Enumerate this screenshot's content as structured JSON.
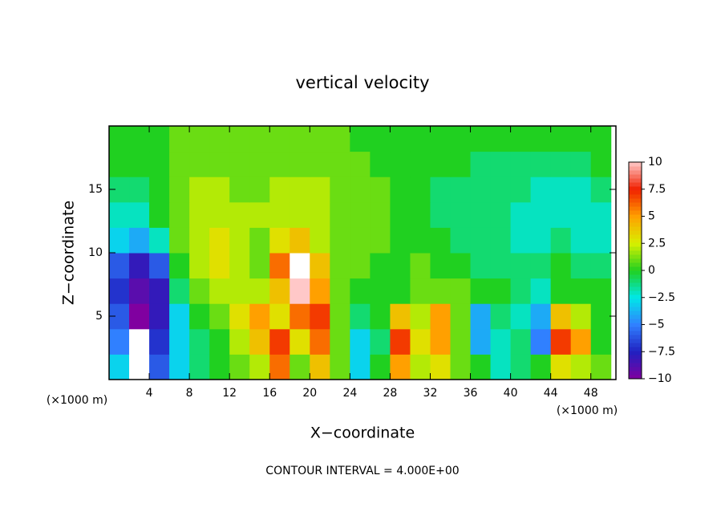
{
  "chart_data": {
    "type": "heatmap",
    "title": "vertical velocity",
    "x_label": "X−coordinate",
    "y_label": "Z−coordinate",
    "x_unit": "(×1000 m)",
    "footer": "CONTOUR INTERVAL = 4.000E+00",
    "x": [
      1,
      3,
      5,
      7,
      9,
      11,
      13,
      15,
      17,
      19,
      21,
      23,
      25,
      27,
      29,
      31,
      33,
      35,
      37,
      39,
      41,
      43,
      45,
      47,
      49
    ],
    "y": [
      1,
      3,
      5,
      7,
      9,
      11,
      13,
      15,
      17,
      19
    ],
    "z": [
      [
        -3,
        -12,
        -6,
        -3,
        -1,
        0,
        1,
        2,
        6,
        1,
        4,
        1,
        -3,
        0,
        5,
        2,
        3,
        1,
        0,
        -2,
        -1,
        0,
        3,
        2,
        1
      ],
      [
        -5,
        -12,
        -7,
        -3,
        -1,
        0,
        2,
        4,
        7,
        3,
        6,
        1,
        -3,
        -1,
        7,
        3,
        5,
        1,
        -4,
        -2,
        -1,
        -5,
        7,
        5,
        0
      ],
      [
        -6,
        -10,
        -8,
        -3,
        0,
        1,
        3,
        5,
        3,
        6,
        7,
        1,
        -1,
        0,
        4,
        2,
        5,
        1,
        -4,
        -1,
        -2,
        -4,
        4,
        2,
        0
      ],
      [
        -7,
        -9,
        -8,
        -1,
        1,
        2,
        2,
        2,
        4,
        10,
        5,
        1,
        0,
        0,
        0,
        1,
        1,
        1,
        0,
        0,
        -1,
        -2,
        0,
        0,
        0
      ],
      [
        -6,
        -8,
        -6,
        0,
        2,
        3,
        2,
        1,
        6,
        11,
        4,
        1,
        1,
        0,
        0,
        1,
        0,
        0,
        -1,
        -1,
        -1,
        -1,
        0,
        -1,
        -1
      ],
      [
        -3,
        -4,
        -2,
        1,
        2,
        3,
        2,
        1,
        3,
        4,
        2,
        1,
        1,
        1,
        0,
        0,
        0,
        -1,
        -1,
        -1,
        -2,
        -2,
        -1,
        -2,
        -2
      ],
      [
        -2,
        -2,
        0,
        1,
        2,
        2,
        2,
        2,
        2,
        2,
        2,
        1,
        1,
        1,
        0,
        0,
        -1,
        -1,
        -1,
        -1,
        -2,
        -2,
        -2,
        -2,
        -2
      ],
      [
        -1,
        -1,
        0,
        1,
        2,
        2,
        1,
        1,
        2,
        2,
        2,
        1,
        1,
        1,
        0,
        0,
        -1,
        -1,
        -1,
        -1,
        -1,
        -2,
        -2,
        -2,
        -1
      ],
      [
        0,
        0,
        0,
        1,
        1,
        1,
        1,
        1,
        1,
        1,
        1,
        1,
        1,
        0,
        0,
        0,
        0,
        0,
        -1,
        -1,
        -1,
        -1,
        -1,
        -1,
        0
      ],
      [
        0,
        0,
        0,
        1,
        1,
        1,
        1,
        1,
        1,
        1,
        1,
        1,
        0,
        0,
        0,
        0,
        0,
        0,
        0,
        0,
        0,
        0,
        0,
        0,
        0
      ]
    ],
    "xlim": [
      0,
      50.5
    ],
    "ylim": [
      0,
      20
    ],
    "xticks": [
      4,
      8,
      12,
      16,
      20,
      24,
      28,
      32,
      36,
      40,
      44,
      48
    ],
    "yticks": [
      5,
      10,
      15
    ],
    "clim": [
      -10,
      10
    ],
    "cticks": [
      10,
      7.5,
      5,
      2.5,
      0,
      {
        "value": -2.5,
        "label": "−2.5"
      },
      {
        "value": -5,
        "label": "−5"
      },
      {
        "value": -7.5,
        "label": "−7.5"
      },
      {
        "value": -10,
        "label": "−10"
      }
    ],
    "colors": [
      "#ffc8c8",
      "#f02000",
      "#ffa000",
      "#d8f000",
      "#20d020",
      "#00e8e8",
      "#3080ff",
      "#2020c0",
      "#8000a0"
    ],
    "out_of_range_color": "#ffffff"
  }
}
